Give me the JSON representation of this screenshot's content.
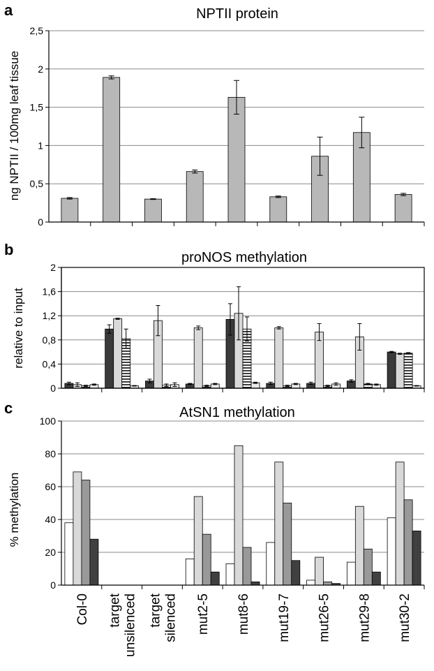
{
  "chart_data": [
    {
      "type": "bar",
      "panel": "a",
      "title": "NPTII protein",
      "ylabel": "ng NPTII / 100mg leaf tissue",
      "ylim": [
        0,
        2.5
      ],
      "yticks": [
        "0",
        "0,5",
        "1",
        "1,5",
        "2",
        "2,5"
      ],
      "grid": true,
      "categories": [
        "Col-0",
        "target unsilenced",
        "target silenced",
        "mut2-5",
        "mut8-6",
        "mut19-7",
        "mut26-5",
        "mut29-8",
        "mut30-2"
      ],
      "series": [
        {
          "color": "#b8b8b8",
          "pattern": "solid",
          "values": [
            0.31,
            1.89,
            0.3,
            0.66,
            1.63,
            0.33,
            0.86,
            1.17,
            0.36
          ],
          "errors": [
            0.01,
            0.02,
            0.005,
            0.02,
            0.22,
            0.01,
            0.25,
            0.2,
            0.015
          ]
        }
      ]
    },
    {
      "type": "bar",
      "panel": "b",
      "title": "proNOS methylation",
      "ylabel": "relative to input",
      "ylim": [
        0,
        2
      ],
      "yticks": [
        "0",
        "0,4",
        "0,8",
        "1,2",
        "1,6",
        "2"
      ],
      "grid": true,
      "categories": [
        "Col-0",
        "target unsilenced",
        "target silenced",
        "mut2-5",
        "mut8-6",
        "mut19-7",
        "mut26-5",
        "mut29-8",
        "mut30-2"
      ],
      "series": [
        {
          "color": "#3a3a3a",
          "pattern": "solid",
          "values": [
            0.08,
            0.98,
            0.12,
            0.07,
            1.14,
            0.08,
            0.08,
            0.12,
            0.6
          ],
          "errors": [
            0.02,
            0.07,
            0.03,
            0.01,
            0.26,
            0.02,
            0.02,
            0.02,
            0.01
          ]
        },
        {
          "color": "#d9d9d9",
          "pattern": "solid",
          "values": [
            0.06,
            1.15,
            1.12,
            1.0,
            1.24,
            1.0,
            0.93,
            0.85,
            0.57
          ],
          "errors": [
            0.03,
            0.01,
            0.25,
            0.03,
            0.44,
            0.02,
            0.14,
            0.22,
            0.01
          ]
        },
        {
          "color": "#ffffff",
          "pattern": "stripes",
          "values": [
            0.04,
            0.82,
            0.05,
            0.04,
            0.98,
            0.04,
            0.04,
            0.07,
            0.58
          ],
          "errors": [
            0.01,
            0.16,
            0.02,
            0.01,
            0.2,
            0.01,
            0.01,
            0.01,
            0.01
          ]
        },
        {
          "color": "#e8e8e8",
          "pattern": "solid",
          "values": [
            0.06,
            0.04,
            0.06,
            0.07,
            0.09,
            0.07,
            0.07,
            0.06,
            0.04
          ],
          "errors": [
            0.01,
            0.005,
            0.03,
            0.01,
            0.01,
            0.01,
            0.02,
            0.01,
            0.005
          ]
        }
      ]
    },
    {
      "type": "bar",
      "panel": "c",
      "title": "AtSN1 methylation",
      "ylabel": "% methylation",
      "ylim": [
        0,
        100
      ],
      "yticks": [
        "0",
        "20",
        "40",
        "60",
        "80",
        "100"
      ],
      "grid": true,
      "categories": [
        "Col-0",
        "target unsilenced",
        "target silenced",
        "mut2-5",
        "mut8-6",
        "mut19-7",
        "mut26-5",
        "mut29-8",
        "mut30-2"
      ],
      "series": [
        {
          "color": "#ffffff",
          "values": [
            38,
            0,
            0,
            16,
            13,
            26,
            3,
            14,
            41
          ]
        },
        {
          "color": "#d9d9d9",
          "values": [
            69,
            0,
            0,
            54,
            85,
            75,
            17,
            48,
            75
          ]
        },
        {
          "color": "#999999",
          "values": [
            64,
            0,
            0,
            31,
            23,
            50,
            2,
            22,
            52
          ]
        },
        {
          "color": "#404040",
          "values": [
            28,
            0,
            0,
            8,
            2,
            15,
            1,
            8,
            33
          ]
        }
      ]
    }
  ]
}
